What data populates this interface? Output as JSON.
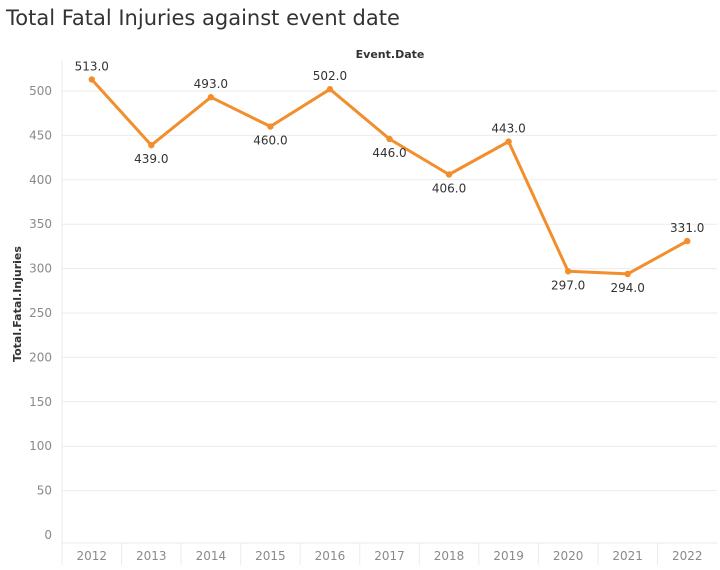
{
  "title": "Total Fatal Injuries against event date",
  "chart_data": {
    "type": "line",
    "title": "Total Fatal Injuries against event date",
    "xlabel": "Event.Date",
    "ylabel": "Total.Fatal.Injuries",
    "categories": [
      "2012",
      "2013",
      "2014",
      "2015",
      "2016",
      "2017",
      "2018",
      "2019",
      "2020",
      "2021",
      "2022"
    ],
    "values": [
      513,
      439,
      493,
      460,
      502,
      446,
      406,
      443,
      297,
      294,
      331
    ],
    "data_labels": [
      "513.0",
      "439.0",
      "493.0",
      "460.0",
      "502.0",
      "446.0",
      "406.0",
      "443.0",
      "297.0",
      "294.0",
      "331.0"
    ],
    "label_positions": [
      "above",
      "below",
      "above",
      "below",
      "above",
      "below",
      "below",
      "above",
      "below",
      "below",
      "above"
    ],
    "ylim": [
      0,
      530
    ],
    "yticks": [
      0,
      50,
      100,
      150,
      200,
      250,
      300,
      350,
      400,
      450,
      500
    ],
    "grid": true,
    "line_color": "#f28e2b",
    "grid_color": "#ebebeb",
    "tick_color": "#8a8a8a",
    "label_color": "#333333"
  }
}
